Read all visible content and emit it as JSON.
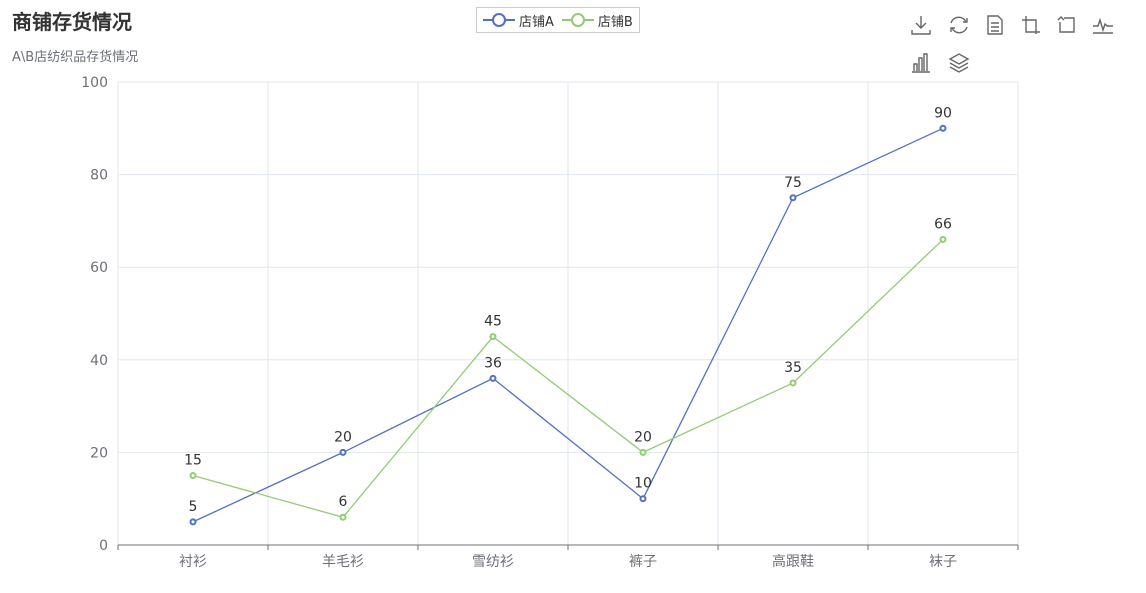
{
  "header": {
    "title": "商铺存货情况",
    "subtitle": "A\\B店纺织品存货情况"
  },
  "legend": [
    {
      "name": "店铺A",
      "color": "#5470c6"
    },
    {
      "name": "店铺B",
      "color": "#91cc75"
    }
  ],
  "toolbox": [
    {
      "icon": "download-icon"
    },
    {
      "icon": "refresh-icon"
    },
    {
      "icon": "data-view-icon"
    },
    {
      "icon": "zoom-icon"
    },
    {
      "icon": "zoom-reset-icon"
    },
    {
      "icon": "line-chart-icon"
    },
    {
      "icon": "bar-chart-icon"
    },
    {
      "icon": "stack-icon"
    }
  ],
  "chart_data": {
    "type": "line",
    "categories": [
      "衬衫",
      "羊毛衫",
      "雪纺衫",
      "裤子",
      "高跟鞋",
      "袜子"
    ],
    "series": [
      {
        "name": "店铺A",
        "color": "#5470c6",
        "values": [
          5,
          20,
          36,
          10,
          75,
          90
        ]
      },
      {
        "name": "店铺B",
        "color": "#91cc75",
        "values": [
          15,
          6,
          45,
          20,
          35,
          66
        ]
      }
    ],
    "ylim": [
      0,
      100
    ],
    "yticks": [
      0,
      20,
      40,
      60,
      80,
      100
    ],
    "grid": true,
    "legend_position": "top-center",
    "data_labels": true
  }
}
